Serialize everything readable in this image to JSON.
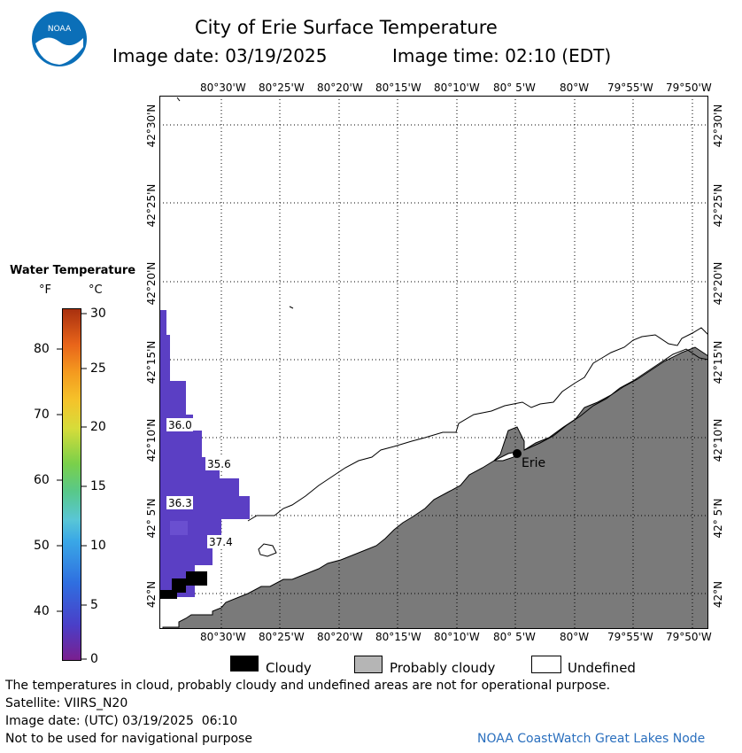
{
  "header": {
    "title": "City of Erie Surface Temperature",
    "image_date": "Image date: 03/19/2025",
    "image_time": "Image time: 02:10 (EDT)"
  },
  "logo": {
    "text": "NOAA",
    "color": "#0b6fb8"
  },
  "map": {
    "lon_labels": [
      "80°30'W",
      "80°25'W",
      "80°20'W",
      "80°15'W",
      "80°10'W",
      "80° 5'W",
      "80°W",
      "79°55'W",
      "79°50'W"
    ],
    "lat_labels": [
      "42°30'N",
      "42°25'N",
      "42°20'N",
      "42°15'N",
      "42°10'N",
      "42° 5'N",
      "42°N"
    ],
    "city_label": "Erie",
    "temp_labels": [
      "36.0",
      "35.6",
      "36.3",
      "37.4"
    ],
    "land_color": "#7a7a7a",
    "water_color": "#5b3fc4"
  },
  "legend": {
    "title": "Water Temperature",
    "unit_f": "°F",
    "unit_c": "°C",
    "f_ticks": [
      "80",
      "70",
      "60",
      "50",
      "40"
    ],
    "c_ticks": [
      "30",
      "25",
      "20",
      "15",
      "10",
      "5",
      "0"
    ]
  },
  "key": {
    "cloudy": "Cloudy",
    "probably_cloudy": "Probably cloudy",
    "undefined": "Undefined"
  },
  "footer": {
    "disclaimer": "The temperatures in cloud, probably cloudy and undefined areas are not for operational purpose.",
    "satellite": "Satellite: VIIRS_N20",
    "utc_date": "Image date: (UTC) 03/19/2025  06:10",
    "nav_note": "Not to be used for navigational purpose",
    "credit": "NOAA CoastWatch Great Lakes Node"
  }
}
